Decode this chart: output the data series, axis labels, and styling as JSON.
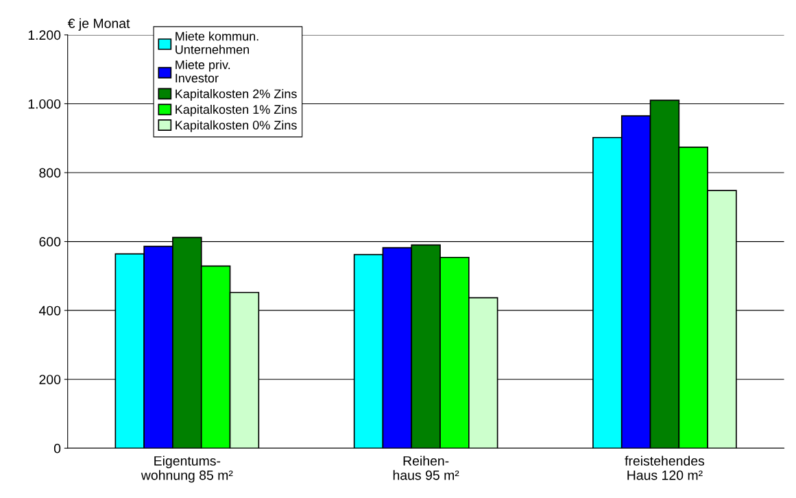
{
  "chart_data": {
    "type": "bar",
    "ylabel": "€ je Monat",
    "categories": [
      "Eigentums-\nwohnung 85 m²",
      "Reihen-\nhaus 95 m²",
      "freistehendes\nHaus 120 m²"
    ],
    "series": [
      {
        "name": "Miete kommun.\nUnternehmen",
        "color": "#00ffff",
        "values": [
          564,
          562,
          902
        ]
      },
      {
        "name": "Miete priv.\nInvestor",
        "color": "#0000ff",
        "values": [
          586,
          582,
          965
        ]
      },
      {
        "name": "Kapitalkosten 2% Zins",
        "color": "#008000",
        "values": [
          612,
          590,
          1010
        ]
      },
      {
        "name": "Kapitalkosten 1% Zins",
        "color": "#00ff00",
        "values": [
          529,
          554,
          874
        ]
      },
      {
        "name": "Kapitalkosten 0% Zins",
        "color": "#ccffcc",
        "values": [
          452,
          437,
          748
        ]
      }
    ],
    "ylim": [
      0,
      1200
    ],
    "yticks": [
      0,
      {
        "value": 200,
        "label": "200"
      },
      {
        "value": 400,
        "label": "400"
      },
      {
        "value": 600,
        "label": "600"
      },
      {
        "value": 800,
        "label": "800"
      },
      {
        "value": 1000,
        "label": "1.000"
      },
      {
        "value": 1200,
        "label": "1.200"
      }
    ],
    "grid": "y",
    "legend": "top left"
  }
}
